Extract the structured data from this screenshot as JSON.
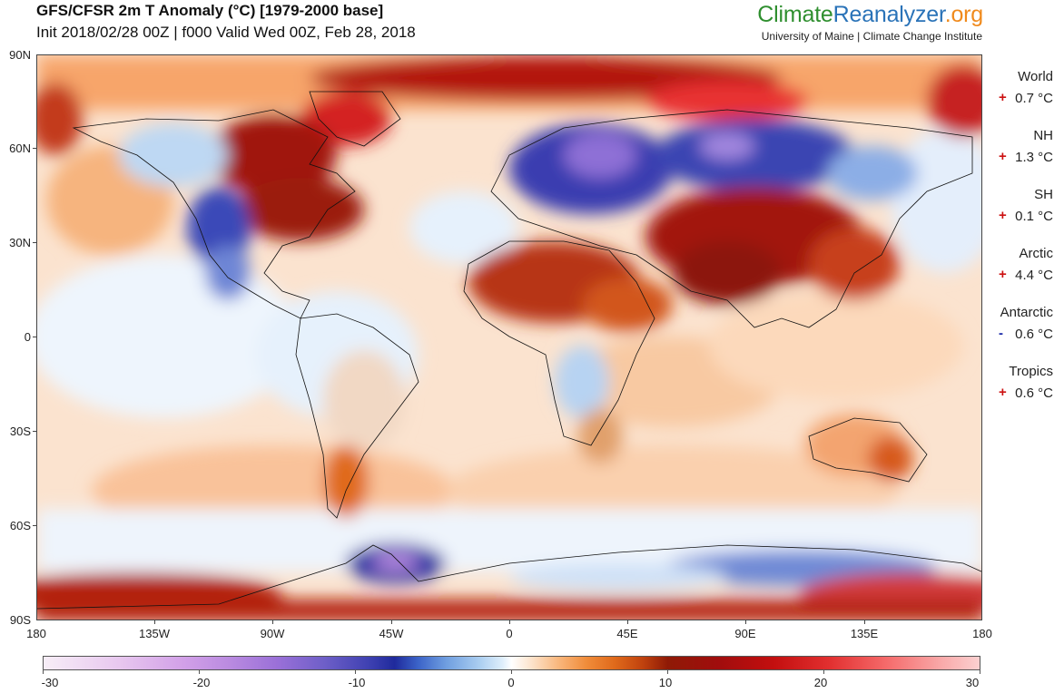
{
  "header": {
    "title": "GFS/CFSR 2m T Anomaly (°C) [1979-2000 base]",
    "subtitle": "Init 2018/02/28 00Z | f000 Valid Wed 00Z, Feb 28, 2018"
  },
  "brand": {
    "part1": "Climate",
    "part2": "Reanalyzer",
    "part3": ".org",
    "subtitle": "University of Maine | Climate Change Institute",
    "colors": {
      "part1": "#2f8f2f",
      "part2": "#2a73b8",
      "part3": "#f08a1c"
    }
  },
  "map": {
    "projection": "equirectangular",
    "lat_labels": [
      "90N",
      "60N",
      "30N",
      "0",
      "30S",
      "60S",
      "90S"
    ],
    "lon_labels": [
      "180",
      "135W",
      "90W",
      "45W",
      "0",
      "45E",
      "90E",
      "135E",
      "180"
    ]
  },
  "stats": [
    {
      "name": "World",
      "sign": "+",
      "value": "0.7 °C"
    },
    {
      "name": "NH",
      "sign": "+",
      "value": "1.3 °C"
    },
    {
      "name": "SH",
      "sign": "+",
      "value": "0.1 °C"
    },
    {
      "name": "Arctic",
      "sign": "+",
      "value": "4.4 °C"
    },
    {
      "name": "Antarctic",
      "sign": "-",
      "value": "0.6 °C"
    },
    {
      "name": "Tropics",
      "sign": "+",
      "value": "0.6 °C"
    }
  ],
  "colorbar": {
    "labels": [
      "-30",
      "-20",
      "-10",
      "0",
      "10",
      "20",
      "30"
    ],
    "min": -30,
    "max": 30
  }
}
